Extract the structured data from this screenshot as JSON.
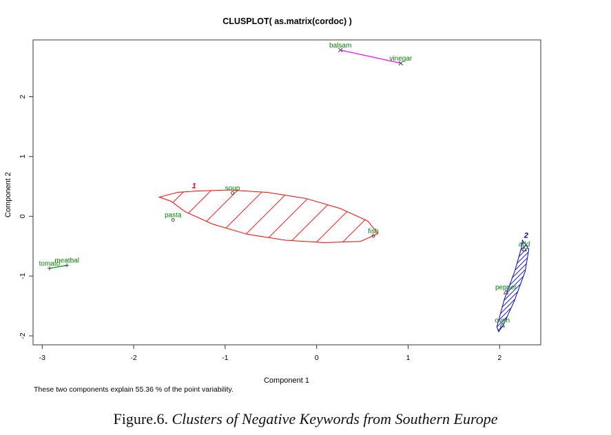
{
  "chart_data": {
    "type": "scatter",
    "title": "CLUSPLOT( as.matrix(cordoc) )",
    "xlabel": "Component 1",
    "ylabel": "Component 2",
    "xlim": [
      -3.1,
      2.45
    ],
    "ylim": [
      -2.15,
      2.95
    ],
    "x_ticks": [
      -3,
      -2,
      -1,
      0,
      1,
      2
    ],
    "y_ticks": [
      -2,
      -1,
      0,
      1,
      2
    ],
    "grid": false,
    "footnote": "These two components explain 55.36 % of the point variability.",
    "points": [
      {
        "label": "balsam",
        "x": 0.26,
        "y": 2.78,
        "color": "#008000",
        "marker": "x"
      },
      {
        "label": "vinegar",
        "x": 0.92,
        "y": 2.56,
        "color": "#008000",
        "marker": "x"
      },
      {
        "label": "soup",
        "x": -0.92,
        "y": 0.39,
        "color": "#008000",
        "marker": "o"
      },
      {
        "label": "pasta",
        "x": -1.57,
        "y": -0.06,
        "color": "#008000",
        "marker": "o"
      },
      {
        "label": "fish",
        "x": 0.62,
        "y": -0.33,
        "color": "#008000",
        "marker": "o"
      },
      {
        "label": "tomato",
        "x": -2.92,
        "y": -0.87,
        "color": "#008000",
        "marker": "+"
      },
      {
        "label": "meatbal",
        "x": -2.73,
        "y": -0.82,
        "color": "#008000",
        "marker": "+"
      },
      {
        "label": "add",
        "x": 2.27,
        "y": -0.55,
        "color": "#008000",
        "marker": "triangle"
      },
      {
        "label": "pepper",
        "x": 2.07,
        "y": -1.27,
        "color": "#008000",
        "marker": "triangle"
      },
      {
        "label": "oven",
        "x": 2.03,
        "y": -1.82,
        "color": "#008000",
        "marker": "triangle"
      }
    ],
    "clusters": [
      {
        "label": "1",
        "color": "#ff0000",
        "ellipse_poly": [
          [
            -1.34,
            0.42
          ],
          [
            -0.96,
            0.44
          ],
          [
            -0.54,
            0.4
          ],
          [
            -0.12,
            0.3
          ],
          [
            0.26,
            0.13
          ],
          [
            0.56,
            -0.08
          ],
          [
            0.67,
            -0.29
          ],
          [
            0.48,
            -0.42
          ],
          [
            0.08,
            -0.44
          ],
          [
            -0.34,
            -0.4
          ],
          [
            -0.76,
            -0.3
          ],
          [
            -1.14,
            -0.13
          ],
          [
            -1.44,
            0.08
          ],
          [
            -1.59,
            0.25
          ],
          [
            -1.72,
            0.32
          ],
          [
            -1.52,
            0.4
          ]
        ],
        "label_at": [
          -1.34,
          0.47
        ]
      },
      {
        "label": "2",
        "color": "#0000cc",
        "ellipse_poly": [
          [
            2.25,
            -0.4
          ],
          [
            2.32,
            -0.55
          ],
          [
            2.28,
            -0.92
          ],
          [
            2.16,
            -1.42
          ],
          [
            2.04,
            -1.82
          ],
          [
            1.99,
            -1.93
          ],
          [
            1.97,
            -1.85
          ],
          [
            2.05,
            -1.4
          ],
          [
            2.17,
            -0.9
          ],
          [
            2.24,
            -0.52
          ]
        ],
        "label_at": [
          2.29,
          -0.36
        ]
      },
      {
        "label": "",
        "color": "#ff00ff",
        "segment": [
          [
            0.26,
            2.78
          ],
          [
            0.92,
            2.56
          ]
        ]
      },
      {
        "label": "",
        "color": "#008000",
        "segment": [
          [
            -2.92,
            -0.87
          ],
          [
            -2.73,
            -0.82
          ]
        ]
      }
    ]
  },
  "caption": {
    "label": "Figure.6.",
    "text": "Clusters of Negative Keywords from Southern Europe"
  }
}
